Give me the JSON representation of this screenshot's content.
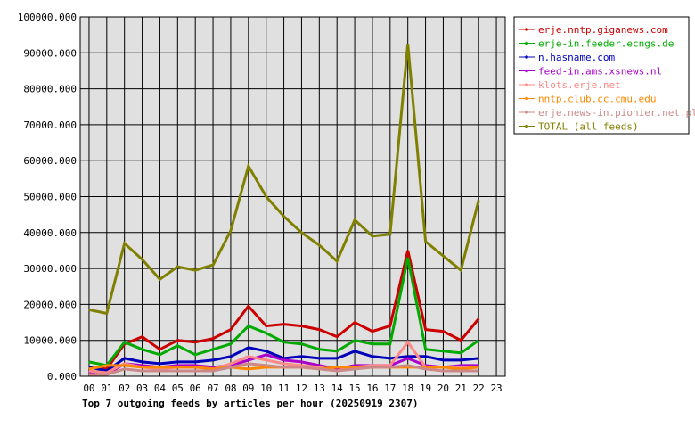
{
  "chart_data": {
    "type": "line",
    "title": "Top 7 outgoing feeds by articles per hour (20250919 2307)",
    "xlabel": "",
    "ylabel": "",
    "ylim": [
      0,
      100000
    ],
    "yticks": [
      "0.000",
      "10000.000",
      "20000.000",
      "30000.000",
      "40000.000",
      "50000.000",
      "60000.000",
      "70000.000",
      "80000.000",
      "90000.000",
      "100000.000"
    ],
    "x": [
      "00",
      "01",
      "02",
      "03",
      "04",
      "05",
      "06",
      "07",
      "08",
      "09",
      "10",
      "11",
      "12",
      "13",
      "14",
      "15",
      "16",
      "17",
      "18",
      "19",
      "20",
      "21",
      "22",
      "23"
    ],
    "grid": true,
    "legend_position": "right",
    "series": [
      {
        "name": "erje.nntp.giganews.com",
        "color": "#cc0000",
        "values": [
          2500,
          2000,
          9000,
          11000,
          7500,
          10000,
          9500,
          10500,
          13000,
          19500,
          14000,
          14500,
          14000,
          13000,
          11000,
          15000,
          12500,
          14000,
          35000,
          13000,
          12500,
          10000,
          16000,
          null
        ]
      },
      {
        "name": "erje-in.feeder.ecngs.de",
        "color": "#00aa00",
        "values": [
          4000,
          3000,
          9500,
          7500,
          6000,
          8500,
          6000,
          7500,
          9000,
          14000,
          12000,
          9500,
          9000,
          7500,
          7000,
          10000,
          9000,
          9000,
          33000,
          7500,
          7000,
          6500,
          10000,
          null
        ]
      },
      {
        "name": "n.hasname.com",
        "color": "#0000bb",
        "values": [
          2500,
          1500,
          5000,
          4000,
          3500,
          4000,
          4000,
          4500,
          5500,
          8000,
          7000,
          5000,
          5500,
          5000,
          5000,
          7000,
          5500,
          5000,
          5500,
          5500,
          4500,
          4500,
          5000,
          null
        ]
      },
      {
        "name": "feed-in.ams.xsnews.nl",
        "color": "#aa00cc",
        "values": [
          1000,
          500,
          3500,
          3000,
          2500,
          3000,
          3000,
          2500,
          3000,
          4500,
          6000,
          4500,
          4000,
          3000,
          2000,
          3000,
          3000,
          3000,
          5000,
          3000,
          2500,
          3000,
          3000,
          null
        ]
      },
      {
        "name": "klots.erje.net",
        "color": "#ff8888",
        "values": [
          1500,
          1000,
          3500,
          2500,
          2000,
          2500,
          2500,
          2000,
          3500,
          5500,
          4500,
          3500,
          3000,
          2500,
          1500,
          2500,
          3000,
          3000,
          9500,
          2500,
          2500,
          2500,
          2500,
          null
        ]
      },
      {
        "name": "nntp.club.cc.cmu.edu",
        "color": "#ff8800",
        "values": [
          2000,
          3000,
          3000,
          2500,
          2500,
          2500,
          2500,
          2000,
          2500,
          2000,
          2500,
          2500,
          2500,
          2000,
          2500,
          2500,
          2500,
          2500,
          2500,
          2500,
          2500,
          2000,
          2500,
          null
        ]
      },
      {
        "name": "erje.news-in.pionier.net.pl",
        "color": "#cc8888",
        "values": [
          500,
          500,
          2000,
          1500,
          1500,
          1500,
          1500,
          1500,
          2500,
          3500,
          3000,
          2500,
          2500,
          2000,
          1500,
          2000,
          2500,
          2500,
          3000,
          2000,
          1500,
          1500,
          1500,
          null
        ]
      },
      {
        "name": "TOTAL (all feeds)",
        "color": "#808000",
        "values": [
          18500,
          17500,
          37000,
          32500,
          27000,
          30500,
          29500,
          31000,
          40500,
          58500,
          50000,
          44500,
          40000,
          36500,
          32000,
          43500,
          39000,
          39500,
          92500,
          37500,
          33500,
          29500,
          49000,
          null
        ]
      }
    ]
  }
}
